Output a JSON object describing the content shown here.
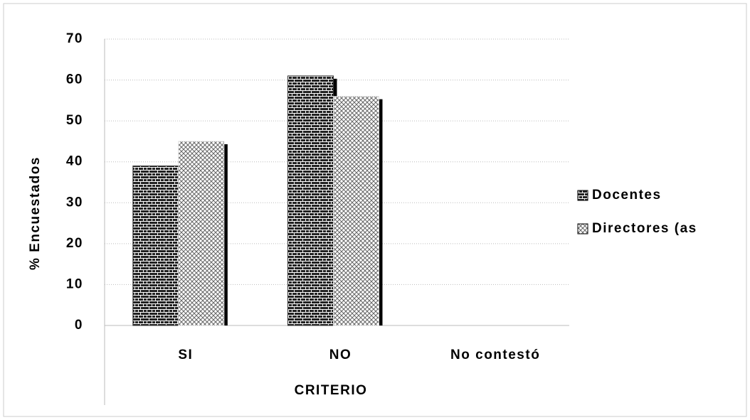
{
  "chart_data": {
    "type": "bar",
    "categories": [
      "SI",
      "NO",
      "No contestó"
    ],
    "series": [
      {
        "name": "Docentes",
        "color": "#333333",
        "values": [
          39,
          61,
          0
        ]
      },
      {
        "name": "Directores (as",
        "color": "#dddddd",
        "values": [
          45,
          56,
          0
        ]
      }
    ],
    "xlabel": "CRITERIO",
    "ylabel": "% Encuestados",
    "ylim": [
      0,
      70
    ],
    "yticks": [
      0,
      10,
      20,
      30,
      40,
      50,
      60,
      70
    ],
    "grid": true,
    "legend": "right"
  }
}
